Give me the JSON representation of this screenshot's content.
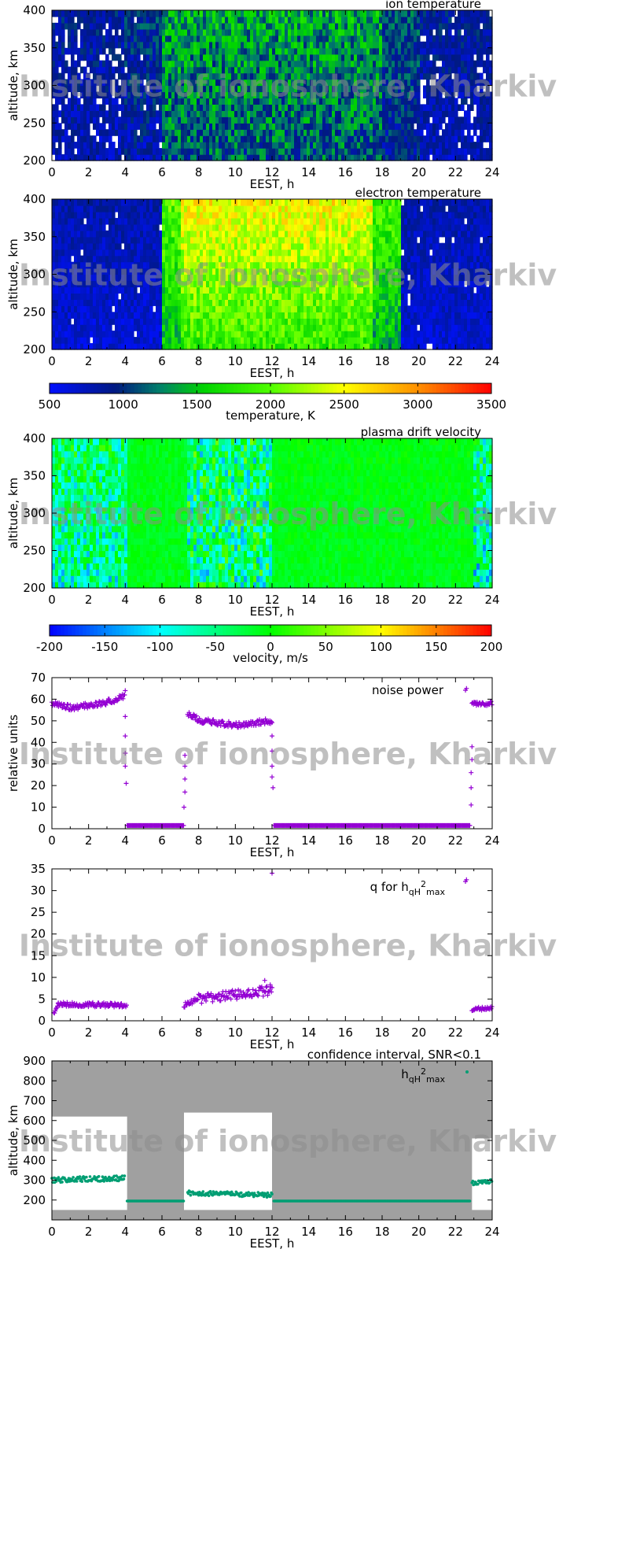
{
  "watermark": "Institute of ionosphere, Kharkiv",
  "chart_data": [
    {
      "type": "heatmap",
      "title": "ion temperature",
      "xlabel": "EEST, h",
      "ylabel": "altitude, km",
      "xlim": [
        0,
        24
      ],
      "ylim": [
        200,
        400
      ],
      "xticks": [
        0,
        2,
        4,
        6,
        8,
        10,
        12,
        14,
        16,
        18,
        20,
        22,
        24
      ],
      "yticks": [
        200,
        250,
        300,
        350,
        400
      ],
      "colorscale": "temperature",
      "segments": [
        {
          "x": [
            0,
            4
          ],
          "value_low_alt": 750,
          "value_high_alt": 900,
          "spread": 200,
          "gaps": 0.12
        },
        {
          "x": [
            4,
            6
          ],
          "value_low_alt": 800,
          "value_high_alt": 1000,
          "spread": 250,
          "gaps": 0.02
        },
        {
          "x": [
            6,
            18
          ],
          "value_low_alt": 1100,
          "value_high_alt": 1400,
          "spread": 350,
          "gaps": 0
        },
        {
          "x": [
            18,
            20
          ],
          "value_low_alt": 900,
          "value_high_alt": 1100,
          "spread": 250,
          "gaps": 0.02
        },
        {
          "x": [
            20,
            24
          ],
          "value_low_alt": 750,
          "value_high_alt": 900,
          "spread": 200,
          "gaps": 0.1
        }
      ]
    },
    {
      "type": "heatmap",
      "title": "electron temperature",
      "xlabel": "EEST, h",
      "ylabel": "altitude, km",
      "xlim": [
        0,
        24
      ],
      "ylim": [
        200,
        400
      ],
      "xticks": [
        0,
        2,
        4,
        6,
        8,
        10,
        12,
        14,
        16,
        18,
        20,
        22,
        24
      ],
      "yticks": [
        200,
        250,
        300,
        350,
        400
      ],
      "colorscale": "temperature",
      "segments": [
        {
          "x": [
            0,
            6
          ],
          "value_low_alt": 650,
          "value_high_alt": 800,
          "spread": 150,
          "gaps": 0.02
        },
        {
          "x": [
            6,
            7
          ],
          "value_low_alt": 1500,
          "value_high_alt": 2000,
          "spread": 300,
          "gaps": 0
        },
        {
          "x": [
            7,
            17.5
          ],
          "value_low_alt": 1800,
          "value_high_alt": 2550,
          "spread": 300,
          "gaps": 0
        },
        {
          "x": [
            17.5,
            19
          ],
          "value_low_alt": 1400,
          "value_high_alt": 1900,
          "spread": 300,
          "gaps": 0
        },
        {
          "x": [
            19,
            24
          ],
          "value_low_alt": 650,
          "value_high_alt": 800,
          "spread": 150,
          "gaps": 0.03
        }
      ]
    },
    {
      "type": "heatmap",
      "title": "plasma drift velocity",
      "xlabel": "EEST, h",
      "ylabel": "altitude, km",
      "xlim": [
        0,
        24
      ],
      "ylim": [
        200,
        400
      ],
      "xticks": [
        0,
        2,
        4,
        6,
        8,
        10,
        12,
        14,
        16,
        18,
        20,
        22,
        24
      ],
      "yticks": [
        200,
        250,
        300,
        350,
        400
      ],
      "colorscale": "velocity",
      "segments": [
        {
          "x": [
            0,
            4.1
          ],
          "value_low_alt": -70,
          "value_high_alt": -40,
          "spread": 70,
          "gaps": 0
        },
        {
          "x": [
            4.1,
            7.4
          ],
          "value_low_alt": -10,
          "value_high_alt": -10,
          "spread": 15,
          "gaps": 0
        },
        {
          "x": [
            7.4,
            12
          ],
          "value_low_alt": -50,
          "value_high_alt": -40,
          "spread": 90,
          "gaps": 0
        },
        {
          "x": [
            12,
            22.9
          ],
          "value_low_alt": -10,
          "value_high_alt": -5,
          "spread": 15,
          "gaps": 0
        },
        {
          "x": [
            22.9,
            24
          ],
          "value_low_alt": -80,
          "value_high_alt": -50,
          "spread": 80,
          "gaps": 0
        }
      ]
    },
    {
      "type": "scatter",
      "legend": "noise power",
      "legend_position": "top-right",
      "xlabel": "EEST, h",
      "ylabel": "relative units",
      "xlim": [
        0,
        24
      ],
      "ylim": [
        0,
        70
      ],
      "xticks": [
        0,
        2,
        4,
        6,
        8,
        10,
        12,
        14,
        16,
        18,
        20,
        22,
        24
      ],
      "yticks": [
        0,
        10,
        20,
        30,
        40,
        50,
        60,
        70
      ],
      "color": "#9400d3",
      "segments": [
        {
          "x": [
            0,
            1.1
          ],
          "y": [
            58,
            56
          ],
          "spread": 1.2
        },
        {
          "x": [
            1.1,
            3
          ],
          "y": [
            56,
            58.5
          ],
          "spread": 1.2
        },
        {
          "x": [
            3,
            4
          ],
          "y": [
            58.5,
            62
          ],
          "spread": 1.5
        },
        {
          "x": [
            4.1,
            7.2
          ],
          "y": [
            1.5,
            1.5
          ],
          "spread": 0
        },
        {
          "x": [
            7.4,
            8.2
          ],
          "y": [
            53,
            50
          ],
          "spread": 1.3
        },
        {
          "x": [
            8.2,
            10
          ],
          "y": [
            50,
            48
          ],
          "spread": 1.3
        },
        {
          "x": [
            10,
            12
          ],
          "y": [
            48,
            50
          ],
          "spread": 1.3
        },
        {
          "x": [
            12.1,
            22.8
          ],
          "y": [
            1.5,
            1.5
          ],
          "spread": 0
        },
        {
          "x": [
            22.9,
            24
          ],
          "y": [
            58,
            58
          ],
          "spread": 1
        }
      ],
      "outliers": [
        [
          4.0,
          64
        ],
        [
          4.0,
          52
        ],
        [
          4.0,
          43
        ],
        [
          4.0,
          35
        ],
        [
          4.0,
          29
        ],
        [
          4.05,
          21
        ],
        [
          7.25,
          34
        ],
        [
          7.25,
          29
        ],
        [
          7.25,
          23
        ],
        [
          7.25,
          17
        ],
        [
          7.2,
          10
        ],
        [
          12,
          43
        ],
        [
          12,
          36
        ],
        [
          12,
          29
        ],
        [
          12,
          24
        ],
        [
          12.05,
          19
        ],
        [
          22.6,
          65
        ],
        [
          22.9,
          38
        ],
        [
          22.9,
          32
        ],
        [
          22.85,
          26
        ],
        [
          22.85,
          19
        ],
        [
          22.85,
          11
        ]
      ]
    },
    {
      "type": "scatter",
      "legend": "q for h",
      "legend_sub": "qH",
      "legend_sup": "2",
      "legend_sub2": "max",
      "legend_position": "top-right",
      "xlabel": "EEST, h",
      "ylabel": "",
      "xlim": [
        0,
        24
      ],
      "ylim": [
        0,
        35
      ],
      "xticks": [
        0,
        2,
        4,
        6,
        8,
        10,
        12,
        14,
        16,
        18,
        20,
        22,
        24
      ],
      "yticks": [
        0,
        5,
        10,
        15,
        20,
        25,
        30,
        35
      ],
      "color": "#9400d3",
      "segments": [
        {
          "x": [
            0.1,
            0.35
          ],
          "y": [
            1.7,
            3.8
          ],
          "spread": 0.3
        },
        {
          "x": [
            0.35,
            4.1
          ],
          "y": [
            3.8,
            3.6
          ],
          "spread": 0.5
        },
        {
          "x": [
            7.2,
            8
          ],
          "y": [
            3.5,
            5
          ],
          "spread": 0.6
        },
        {
          "x": [
            8,
            12
          ],
          "y": [
            5,
            7
          ],
          "spread": 1.1
        },
        {
          "x": [
            22.9,
            24
          ],
          "y": [
            2.6,
            3
          ],
          "spread": 0.4
        }
      ],
      "outliers": [
        [
          12,
          34
        ],
        [
          22.6,
          32.5
        ],
        [
          11.6,
          9.3
        ],
        [
          11.9,
          8.3
        ]
      ]
    },
    {
      "type": "scatter",
      "title": "confidence interval, SNR<0.1",
      "legend": "h",
      "legend_sub": "qH",
      "legend_sup": "2",
      "legend_sub2": "max",
      "legend_position": "top-right",
      "xlabel": "EEST, h",
      "ylabel": "altitude, km",
      "xlim": [
        0,
        24
      ],
      "ylim": [
        100,
        900
      ],
      "xticks": [
        0,
        2,
        4,
        6,
        8,
        10,
        12,
        14,
        16,
        18,
        20,
        22,
        24
      ],
      "yticks": [
        200,
        300,
        400,
        500,
        600,
        700,
        800,
        900
      ],
      "color": "#009e73",
      "band_color": "#a0a0a0",
      "clear_regions": [
        {
          "x": [
            0,
            4.1
          ],
          "y": [
            150,
            620
          ]
        },
        {
          "x": [
            7.2,
            12
          ],
          "y": [
            150,
            640
          ]
        },
        {
          "x": [
            22.9,
            24
          ],
          "y": [
            150,
            510
          ]
        }
      ],
      "segments": [
        {
          "x": [
            0,
            4
          ],
          "y": [
            300,
            310
          ],
          "spread": 14
        },
        {
          "x": [
            4.1,
            7.2
          ],
          "y": [
            195,
            195
          ],
          "spread": 0
        },
        {
          "x": [
            7.4,
            12
          ],
          "y": [
            235,
            225
          ],
          "spread": 12
        },
        {
          "x": [
            12.1,
            22.8
          ],
          "y": [
            195,
            195
          ],
          "spread": 0
        },
        {
          "x": [
            22.9,
            24
          ],
          "y": [
            285,
            295
          ],
          "spread": 10
        }
      ],
      "outliers": []
    }
  ],
  "colorbars": [
    {
      "label": "temperature, K",
      "min": 500,
      "max": 3500,
      "ticks": [
        500,
        1000,
        1500,
        2000,
        2500,
        3000,
        3500
      ],
      "stops": [
        [
          500,
          "#0010ff"
        ],
        [
          950,
          "#001a80"
        ],
        [
          1250,
          "#00806a"
        ],
        [
          1550,
          "#00d400"
        ],
        [
          2000,
          "#50ff00"
        ],
        [
          2500,
          "#ffff00"
        ],
        [
          3000,
          "#ff9000"
        ],
        [
          3500,
          "#ff0000"
        ]
      ]
    },
    {
      "label": "velocity, m/s",
      "min": -200,
      "max": 200,
      "ticks": [
        -200,
        -150,
        -100,
        -50,
        0,
        50,
        100,
        150,
        200
      ],
      "stops": [
        [
          -200,
          "#0000ff"
        ],
        [
          -100,
          "#00ffff"
        ],
        [
          0,
          "#00ff00"
        ],
        [
          100,
          "#ffff00"
        ],
        [
          200,
          "#ff0000"
        ]
      ]
    }
  ]
}
